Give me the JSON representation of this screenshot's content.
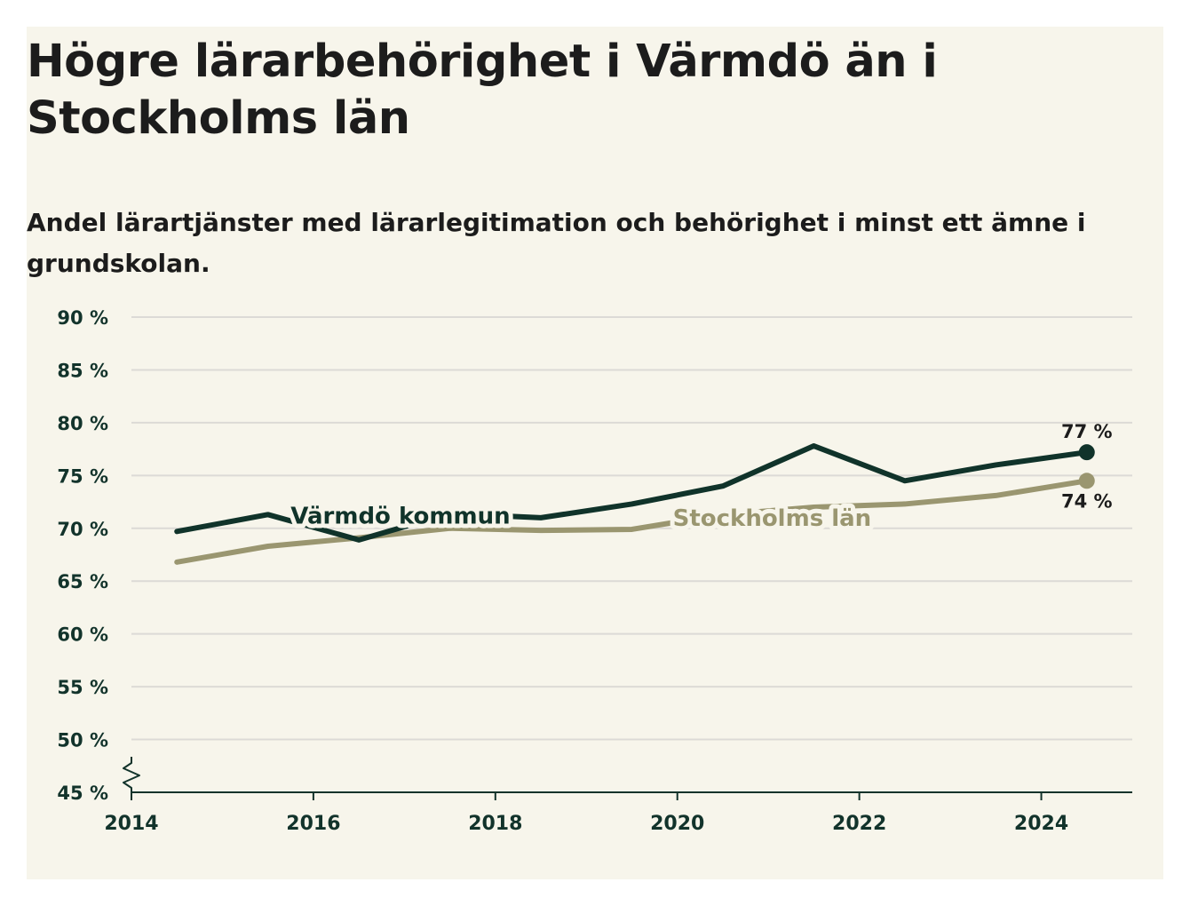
{
  "title": "Högre lärarbehörighet i Värmdö än i Stockholms län",
  "subtitle": "Andel lärartjänster med lärarlegitimation och behörighet i minst ett ämne i grundskolan.",
  "colors": {
    "background": "#f7f5eb",
    "varmdo": "#10332a",
    "stockholm": "#9a9670",
    "grid": "#dcdad6",
    "axis": "#12332b"
  },
  "chart_data": {
    "type": "line",
    "x": [
      2014.5,
      2015.5,
      2016.5,
      2017.5,
      2018.5,
      2019.5,
      2020.5,
      2021.5,
      2022.5,
      2023.5,
      2024.5
    ],
    "series": [
      {
        "name": "Värmdö kommun",
        "values": [
          69.7,
          71.3,
          68.9,
          71.4,
          71.0,
          72.3,
          74.0,
          77.8,
          74.5,
          76.0,
          77.2
        ],
        "end_label": "77 %"
      },
      {
        "name": "Stockholms län",
        "values": [
          66.8,
          68.3,
          69.1,
          70.0,
          69.8,
          69.9,
          71.3,
          72.0,
          72.3,
          73.1,
          74.5
        ],
        "end_label": "74 %"
      }
    ],
    "yticks": [
      45,
      50,
      55,
      60,
      65,
      70,
      75,
      80,
      85,
      90
    ],
    "ytick_labels": [
      "45 %",
      "50 %",
      "55 %",
      "60 %",
      "65 %",
      "70 %",
      "75 %",
      "80 %",
      "85 %",
      "90 %"
    ],
    "xticks": [
      2014,
      2016,
      2018,
      2020,
      2022,
      2024
    ],
    "xtick_labels": [
      "2014",
      "2016",
      "2018",
      "2020",
      "2022",
      "2024"
    ],
    "xlim": [
      2014,
      2025
    ],
    "ylim": [
      45,
      90
    ],
    "grid": true,
    "y_axis_break": true,
    "legend": "inline labels on lines"
  }
}
